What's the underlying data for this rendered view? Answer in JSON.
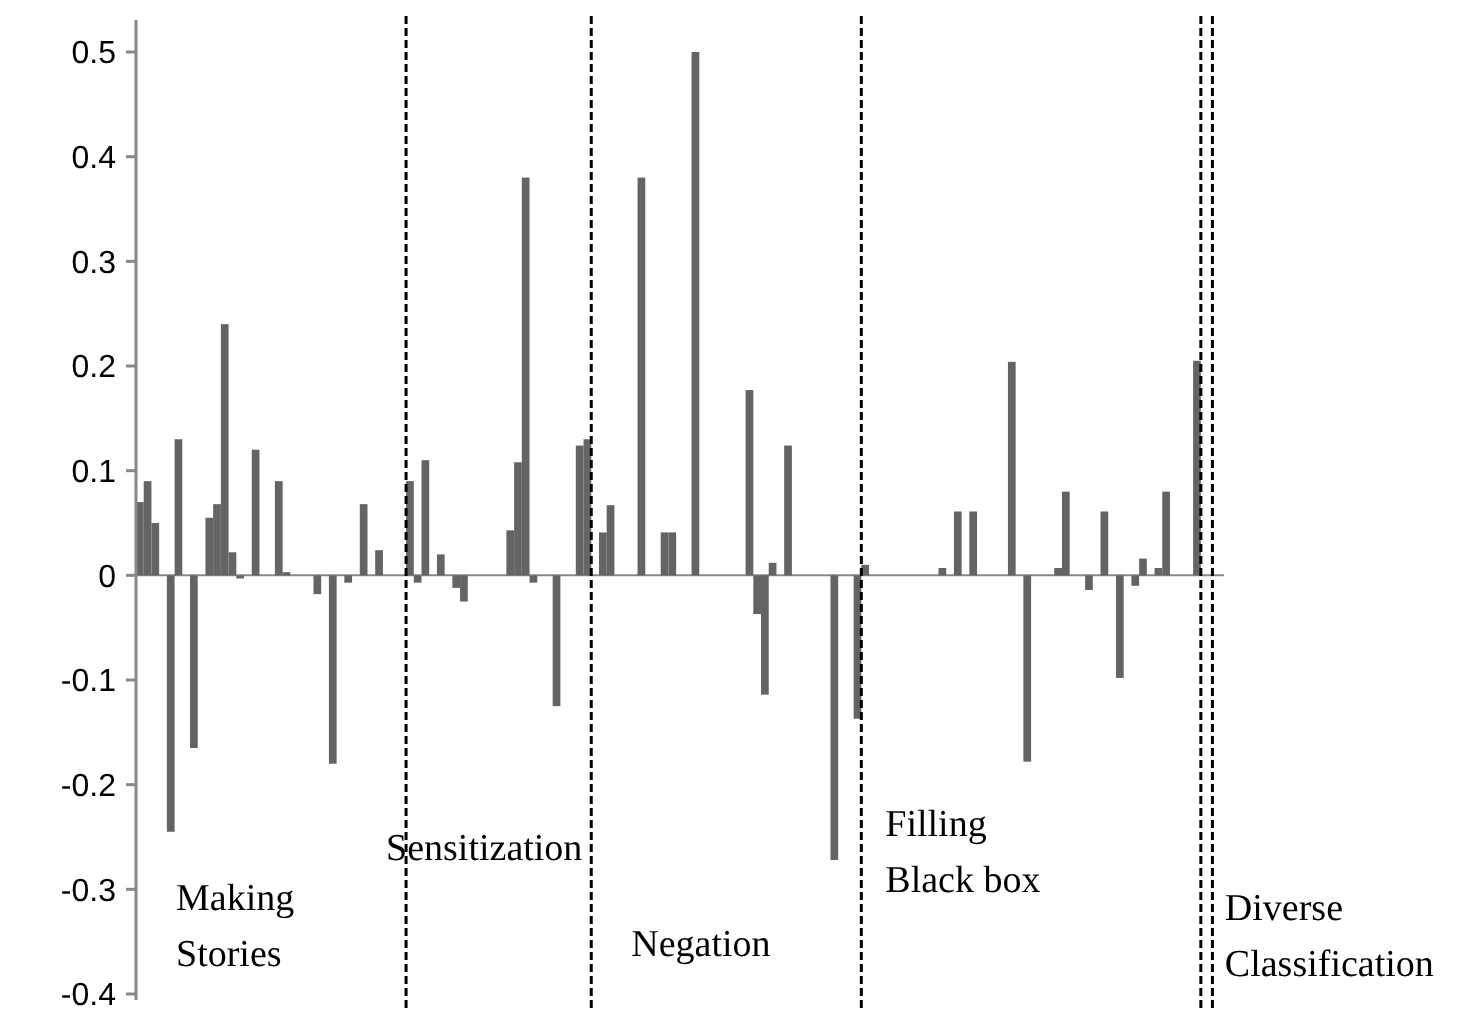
{
  "chart_data": {
    "type": "bar",
    "color": "#646464",
    "categories": [
      null,
      null,
      null,
      null,
      null,
      null,
      null,
      null,
      null,
      null,
      null,
      null,
      null,
      null,
      null,
      null,
      null,
      null,
      null,
      null,
      null,
      null,
      null,
      null,
      null,
      null,
      null,
      null,
      null,
      null,
      null,
      null,
      null,
      null,
      null,
      null,
      null,
      null,
      null,
      null,
      null,
      null,
      null,
      null,
      null,
      null,
      null,
      null,
      null,
      null,
      null,
      null,
      null,
      null,
      null,
      null,
      null,
      null,
      null,
      null,
      null,
      null,
      null,
      null,
      null,
      null,
      null,
      null,
      null,
      null,
      null,
      null,
      null,
      null,
      null,
      null,
      null,
      null,
      null,
      null,
      null,
      null,
      null,
      null,
      null,
      null,
      null,
      null,
      null,
      null,
      null,
      null,
      null,
      null,
      null,
      null,
      null,
      null,
      null,
      null,
      null,
      null,
      null,
      null,
      null,
      null,
      null,
      null,
      null,
      null,
      null,
      null,
      null,
      null,
      null,
      null,
      null,
      null,
      null,
      null,
      null,
      null,
      null,
      null,
      null,
      null,
      null,
      null,
      null,
      null,
      null,
      null,
      null,
      null,
      null,
      null,
      null,
      null,
      null,
      null,
      null
    ],
    "values": [
      0.07,
      0.09,
      0.05,
      null,
      -0.245,
      0.13,
      null,
      -0.165,
      null,
      0.055,
      0.068,
      0.24,
      0.022,
      -0.003,
      null,
      0.12,
      null,
      null,
      0.09,
      0.003,
      null,
      null,
      null,
      -0.018,
      null,
      -0.18,
      null,
      -0.007,
      null,
      0.068,
      null,
      0.024,
      null,
      null,
      null,
      0.09,
      -0.007,
      0.11,
      null,
      0.02,
      null,
      -0.012,
      -0.025,
      null,
      null,
      null,
      null,
      null,
      0.043,
      0.108,
      0.38,
      -0.007,
      null,
      null,
      -0.125,
      null,
      null,
      0.124,
      0.13,
      null,
      0.041,
      0.067,
      null,
      null,
      null,
      0.38,
      null,
      null,
      0.041,
      0.041,
      null,
      null,
      0.5,
      null,
      null,
      null,
      null,
      null,
      null,
      0.177,
      -0.037,
      -0.114,
      0.012,
      null,
      0.124,
      null,
      null,
      null,
      null,
      null,
      -0.272,
      null,
      null,
      -0.137,
      0.01,
      null,
      null,
      null,
      null,
      null,
      null,
      null,
      null,
      null,
      0.007,
      null,
      0.061,
      null,
      0.061,
      null,
      null,
      null,
      null,
      0.204,
      null,
      -0.178,
      null,
      null,
      null,
      0.007,
      0.08,
      null,
      null,
      -0.014,
      null,
      0.061,
      null,
      -0.098,
      null,
      -0.01,
      0.016,
      null,
      0.007,
      0.08,
      null,
      null,
      null,
      0.205,
      null,
      null,
      null
    ],
    "ylim": [
      -0.4,
      0.5
    ],
    "yticks": [
      -0.4,
      -0.3,
      -0.2,
      -0.1,
      0,
      0.1,
      0.2,
      0.3,
      0.4,
      0.5
    ],
    "tick_labels": "y",
    "grid": false,
    "annotations": [
      "Making\nStories",
      "Sensitization",
      "Negation",
      "Filling\nBlack box",
      "Diverse\nClassification"
    ]
  }
}
